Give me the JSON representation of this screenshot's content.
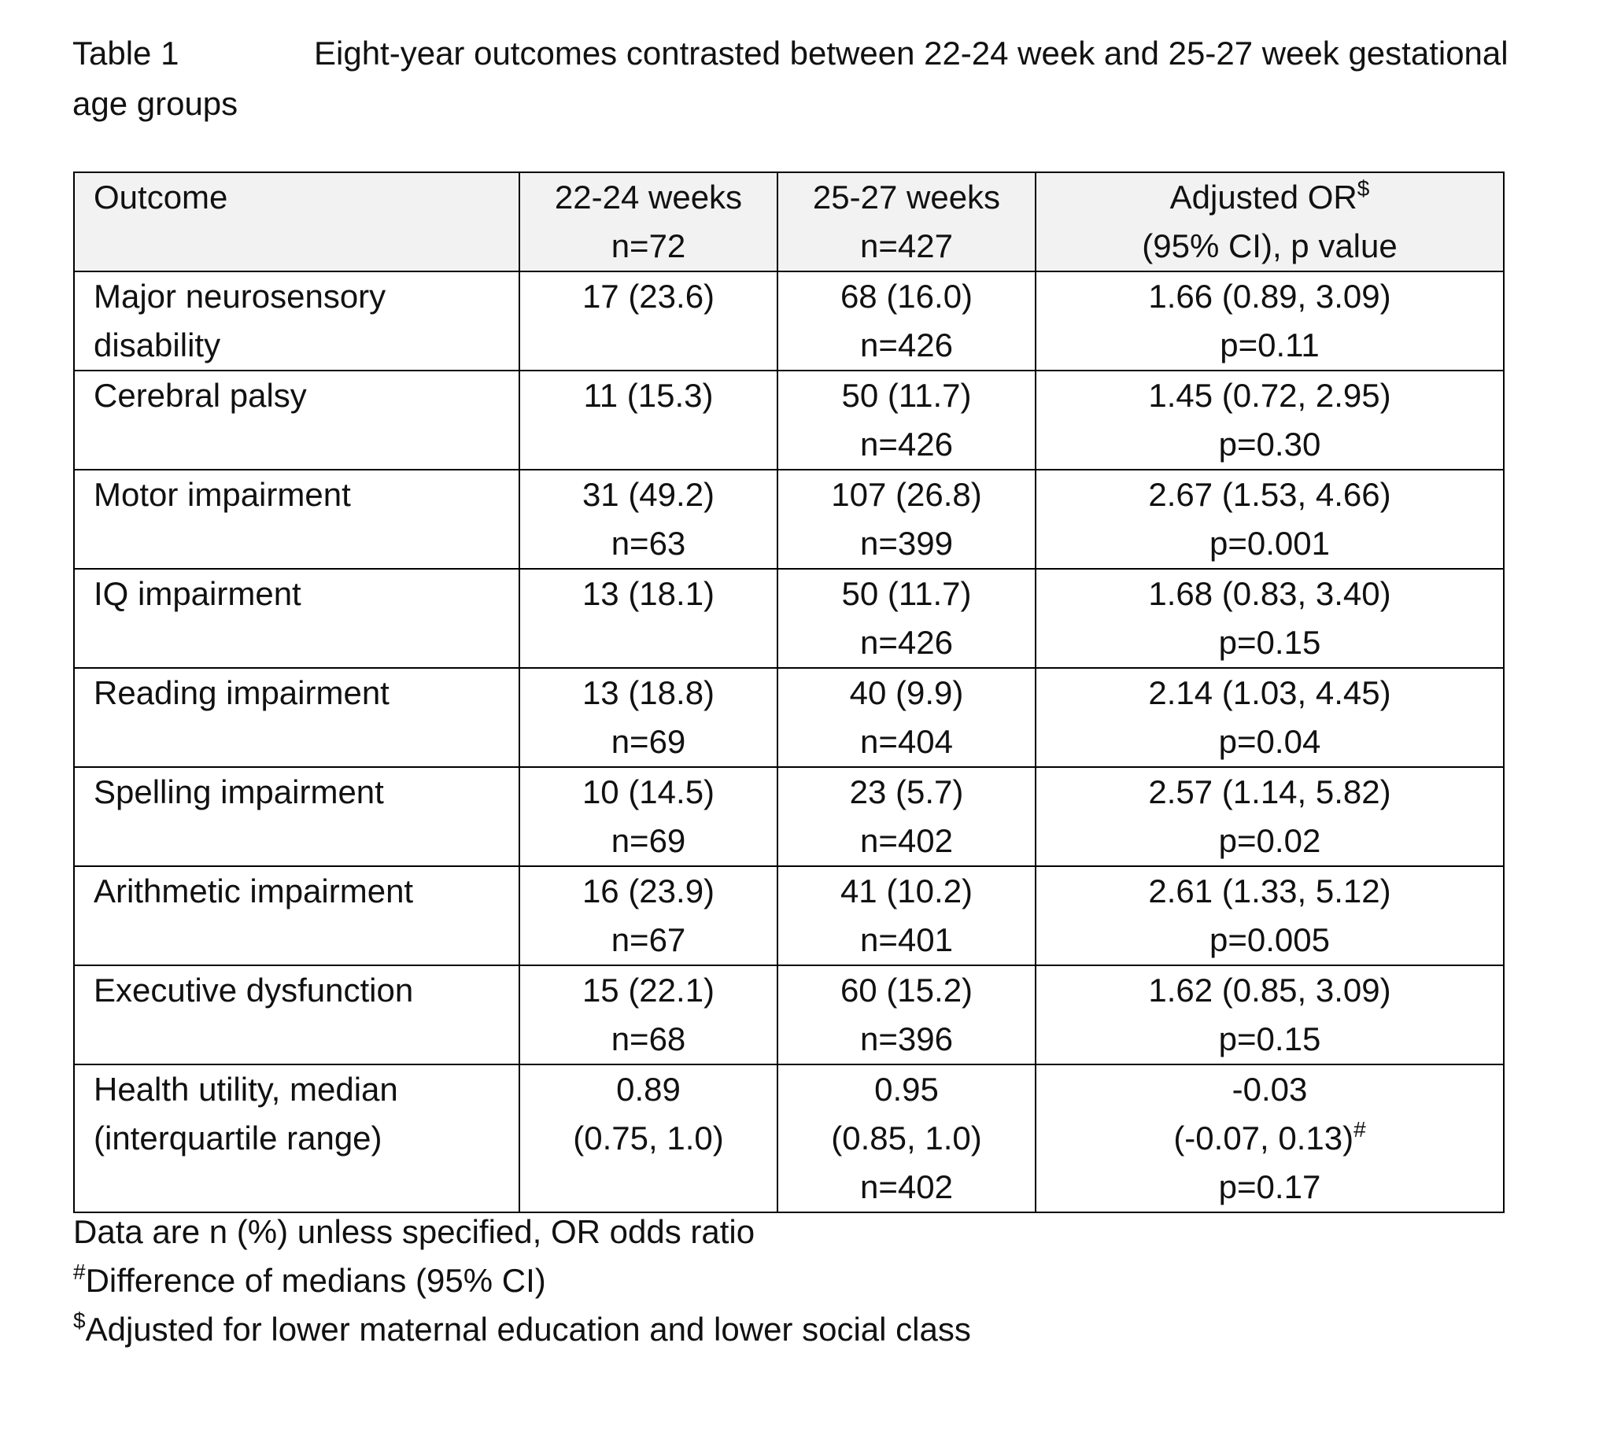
{
  "caption": {
    "label": "Table 1",
    "title": "Eight-year outcomes contrasted between 22-24 week and 25-27 week gestational age groups"
  },
  "table": {
    "headers": [
      {
        "line1": "Outcome",
        "line2": ""
      },
      {
        "line1": "22-24 weeks",
        "line2": "n=72"
      },
      {
        "line1": "25-27 weeks",
        "line2": "n=427"
      },
      {
        "line1": "Adjusted OR",
        "sup": "$",
        "line2": "(95% CI), p value"
      }
    ],
    "rows": [
      {
        "outcome": [
          "Major neurosensory",
          "disability"
        ],
        "g1": [
          "17 (23.6)"
        ],
        "g2": [
          "68 (16.0)",
          "n=426"
        ],
        "or": [
          "1.66 (0.89, 3.09)",
          "p=0.11"
        ]
      },
      {
        "outcome": [
          "Cerebral palsy"
        ],
        "g1": [
          "11 (15.3)"
        ],
        "g2": [
          "50 (11.7)",
          "n=426"
        ],
        "or": [
          "1.45 (0.72, 2.95)",
          "p=0.30"
        ]
      },
      {
        "outcome": [
          "Motor impairment"
        ],
        "g1": [
          "31 (49.2)",
          "n=63"
        ],
        "g2": [
          "107 (26.8)",
          "n=399"
        ],
        "or": [
          "2.67 (1.53, 4.66)",
          "p=0.001"
        ]
      },
      {
        "outcome": [
          "IQ impairment"
        ],
        "g1": [
          "13 (18.1)"
        ],
        "g2": [
          "50 (11.7)",
          "n=426"
        ],
        "or": [
          "1.68 (0.83, 3.40)",
          "p=0.15"
        ]
      },
      {
        "outcome": [
          "Reading impairment"
        ],
        "g1": [
          "13 (18.8)",
          "n=69"
        ],
        "g2": [
          "40 (9.9)",
          "n=404"
        ],
        "or": [
          "2.14 (1.03, 4.45)",
          "p=0.04"
        ]
      },
      {
        "outcome": [
          "Spelling impairment"
        ],
        "g1": [
          "10 (14.5)",
          "n=69"
        ],
        "g2": [
          "23 (5.7)",
          "n=402"
        ],
        "or": [
          "2.57 (1.14, 5.82)",
          "p=0.02"
        ]
      },
      {
        "outcome": [
          "Arithmetic impairment"
        ],
        "g1": [
          "16 (23.9)",
          "n=67"
        ],
        "g2": [
          "41 (10.2)",
          "n=401"
        ],
        "or": [
          "2.61 (1.33, 5.12)",
          "p=0.005"
        ]
      },
      {
        "outcome": [
          "Executive dysfunction"
        ],
        "g1": [
          "15 (22.1)",
          "n=68"
        ],
        "g2": [
          "60 (15.2)",
          "n=396"
        ],
        "or": [
          "1.62 (0.85, 3.09)",
          "p=0.15"
        ]
      }
    ],
    "last_row": {
      "outcome": [
        "Health utility, median",
        "(interquartile range)"
      ],
      "g1": [
        "0.89",
        "(0.75, 1.0)"
      ],
      "g2": [
        "0.95",
        "(0.85, 1.0)",
        "n=402"
      ],
      "or_line1": "-0.03",
      "or_line2": "(-0.07, 0.13)",
      "or_line2_sup": "#",
      "or_line3": "p=0.17"
    }
  },
  "notes": {
    "line1": "Data are n (%) unless specified, OR odds ratio",
    "line2_sup": "#",
    "line2": "Difference of medians (95% CI)",
    "line3_sup": "$",
    "line3": "Adjusted for lower maternal education and lower social class"
  }
}
